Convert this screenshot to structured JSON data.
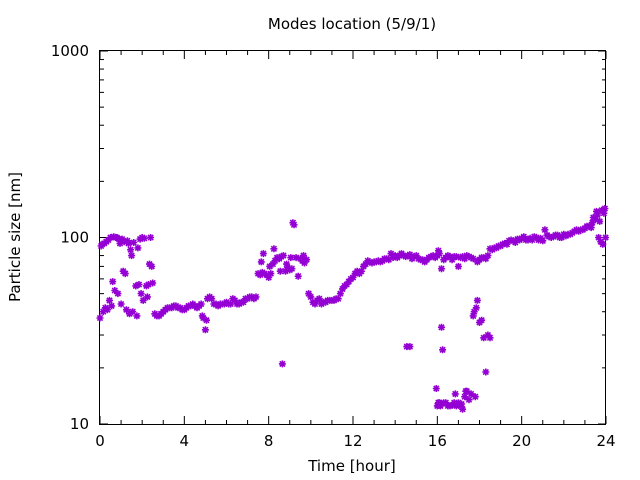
{
  "chart_data": {
    "type": "scatter",
    "title": "Modes location (5/9/1)",
    "xlabel": "Time [hour]",
    "ylabel": "Particle size [nm]",
    "xlim": [
      0,
      24
    ],
    "ylim": [
      10,
      1000
    ],
    "yscale": "log",
    "xticks": [
      0,
      4,
      8,
      12,
      16,
      20,
      24
    ],
    "yticks": [
      10,
      100,
      1000
    ],
    "grid": false,
    "marker_color": "#9400d3",
    "series": [
      {
        "points": [
          [
            0.0,
            37
          ],
          [
            0.05,
            90
          ],
          [
            0.1,
            92
          ],
          [
            0.15,
            40
          ],
          [
            0.2,
            93
          ],
          [
            0.25,
            42
          ],
          [
            0.3,
            95
          ],
          [
            0.35,
            41
          ],
          [
            0.4,
            97
          ],
          [
            0.45,
            46
          ],
          [
            0.5,
            100
          ],
          [
            0.55,
            43
          ],
          [
            0.6,
            58
          ],
          [
            0.65,
            101
          ],
          [
            0.7,
            52
          ],
          [
            0.75,
            100
          ],
          [
            0.8,
            100
          ],
          [
            0.85,
            50
          ],
          [
            0.9,
            98
          ],
          [
            0.95,
            93
          ],
          [
            1.0,
            44
          ],
          [
            1.05,
            98
          ],
          [
            1.1,
            66
          ],
          [
            1.15,
            95
          ],
          [
            1.2,
            64
          ],
          [
            1.25,
            41
          ],
          [
            1.3,
            96
          ],
          [
            1.35,
            93
          ],
          [
            1.4,
            39
          ],
          [
            1.45,
            86
          ],
          [
            1.5,
            80
          ],
          [
            1.55,
            40
          ],
          [
            1.6,
            94
          ],
          [
            1.7,
            55
          ],
          [
            1.75,
            38
          ],
          [
            1.8,
            88
          ],
          [
            1.85,
            56
          ],
          [
            1.9,
            98
          ],
          [
            1.95,
            50
          ],
          [
            2.0,
            100
          ],
          [
            2.05,
            46
          ],
          [
            2.1,
            99
          ],
          [
            2.2,
            55
          ],
          [
            2.25,
            48
          ],
          [
            2.3,
            56
          ],
          [
            2.35,
            72
          ],
          [
            2.4,
            100
          ],
          [
            2.45,
            70
          ],
          [
            2.5,
            57
          ],
          [
            2.6,
            39
          ],
          [
            2.7,
            38
          ],
          [
            2.8,
            38
          ],
          [
            2.9,
            39
          ],
          [
            3.0,
            40
          ],
          [
            3.1,
            41
          ],
          [
            3.2,
            42
          ],
          [
            3.3,
            42
          ],
          [
            3.4,
            42
          ],
          [
            3.5,
            43
          ],
          [
            3.6,
            43
          ],
          [
            3.7,
            42
          ],
          [
            3.8,
            42
          ],
          [
            3.9,
            41
          ],
          [
            4.0,
            41
          ],
          [
            4.1,
            42
          ],
          [
            4.2,
            43
          ],
          [
            4.3,
            43
          ],
          [
            4.4,
            44
          ],
          [
            4.5,
            43
          ],
          [
            4.6,
            42
          ],
          [
            4.7,
            43
          ],
          [
            4.8,
            44
          ],
          [
            4.85,
            38
          ],
          [
            4.9,
            37
          ],
          [
            5.0,
            32
          ],
          [
            5.05,
            36
          ],
          [
            5.1,
            47
          ],
          [
            5.2,
            48
          ],
          [
            5.3,
            47
          ],
          [
            5.4,
            44
          ],
          [
            5.5,
            44
          ],
          [
            5.6,
            43
          ],
          [
            5.7,
            44
          ],
          [
            5.8,
            44
          ],
          [
            5.9,
            44
          ],
          [
            6.0,
            45
          ],
          [
            6.1,
            44
          ],
          [
            6.2,
            44
          ],
          [
            6.3,
            47
          ],
          [
            6.4,
            46
          ],
          [
            6.5,
            44
          ],
          [
            6.6,
            44
          ],
          [
            6.7,
            45
          ],
          [
            6.8,
            45
          ],
          [
            6.9,
            47
          ],
          [
            7.0,
            47
          ],
          [
            7.1,
            48
          ],
          [
            7.2,
            48
          ],
          [
            7.3,
            47
          ],
          [
            7.4,
            48
          ],
          [
            7.5,
            64
          ],
          [
            7.6,
            63
          ],
          [
            7.65,
            74
          ],
          [
            7.7,
            65
          ],
          [
            7.75,
            82
          ],
          [
            7.8,
            64
          ],
          [
            7.9,
            63
          ],
          [
            8.0,
            61
          ],
          [
            8.05,
            70
          ],
          [
            8.1,
            64
          ],
          [
            8.2,
            72
          ],
          [
            8.25,
            87
          ],
          [
            8.3,
            75
          ],
          [
            8.4,
            78
          ],
          [
            8.5,
            77
          ],
          [
            8.55,
            66
          ],
          [
            8.6,
            79
          ],
          [
            8.65,
            21
          ],
          [
            8.7,
            80
          ],
          [
            8.8,
            66
          ],
          [
            8.85,
            72
          ],
          [
            8.9,
            69
          ],
          [
            9.0,
            67
          ],
          [
            9.05,
            78
          ],
          [
            9.1,
            68
          ],
          [
            9.15,
            120
          ],
          [
            9.2,
            117
          ],
          [
            9.3,
            78
          ],
          [
            9.4,
            62
          ],
          [
            9.5,
            77
          ],
          [
            9.6,
            75
          ],
          [
            9.65,
            80
          ],
          [
            9.7,
            73
          ],
          [
            9.8,
            76
          ],
          [
            9.9,
            50
          ],
          [
            10.0,
            48
          ],
          [
            10.1,
            45
          ],
          [
            10.2,
            44
          ],
          [
            10.3,
            46
          ],
          [
            10.4,
            47
          ],
          [
            10.5,
            44
          ],
          [
            10.6,
            45
          ],
          [
            10.7,
            45
          ],
          [
            10.8,
            46
          ],
          [
            10.9,
            46
          ],
          [
            11.0,
            46
          ],
          [
            11.1,
            46
          ],
          [
            11.2,
            47
          ],
          [
            11.3,
            47
          ],
          [
            11.4,
            50
          ],
          [
            11.5,
            53
          ],
          [
            11.6,
            55
          ],
          [
            11.7,
            56
          ],
          [
            11.8,
            58
          ],
          [
            11.9,
            60
          ],
          [
            12.0,
            61
          ],
          [
            12.1,
            64
          ],
          [
            12.2,
            66
          ],
          [
            12.3,
            64
          ],
          [
            12.4,
            66
          ],
          [
            12.5,
            70
          ],
          [
            12.6,
            72
          ],
          [
            12.7,
            75
          ],
          [
            12.8,
            74
          ],
          [
            12.9,
            73
          ],
          [
            13.0,
            74
          ],
          [
            13.1,
            74
          ],
          [
            13.2,
            75
          ],
          [
            13.3,
            74
          ],
          [
            13.4,
            75
          ],
          [
            13.5,
            77
          ],
          [
            13.6,
            77
          ],
          [
            13.7,
            76
          ],
          [
            13.8,
            82
          ],
          [
            13.9,
            78
          ],
          [
            14.0,
            80
          ],
          [
            14.1,
            78
          ],
          [
            14.2,
            80
          ],
          [
            14.3,
            82
          ],
          [
            14.4,
            80
          ],
          [
            14.5,
            79
          ],
          [
            14.6,
            80
          ],
          [
            14.7,
            81
          ],
          [
            14.8,
            77
          ],
          [
            14.9,
            79
          ],
          [
            15.0,
            80
          ],
          [
            15.1,
            77
          ],
          [
            15.2,
            76
          ],
          [
            15.3,
            76
          ],
          [
            15.4,
            74
          ],
          [
            15.5,
            76
          ],
          [
            15.6,
            78
          ],
          [
            15.7,
            79
          ],
          [
            15.8,
            80
          ],
          [
            15.9,
            78
          ],
          [
            16.0,
            80
          ],
          [
            16.05,
            85
          ],
          [
            16.1,
            82
          ],
          [
            16.2,
            68
          ],
          [
            16.3,
            76
          ],
          [
            16.4,
            78
          ],
          [
            16.5,
            80
          ],
          [
            16.6,
            79
          ],
          [
            16.7,
            76
          ],
          [
            16.8,
            79
          ],
          [
            16.9,
            79
          ],
          [
            17.0,
            70
          ],
          [
            17.1,
            78
          ],
          [
            17.2,
            79
          ],
          [
            17.3,
            77
          ],
          [
            17.4,
            80
          ],
          [
            17.5,
            79
          ],
          [
            17.6,
            78
          ],
          [
            17.7,
            77
          ],
          [
            14.55,
            26
          ],
          [
            14.7,
            26
          ],
          [
            15.95,
            15.5
          ],
          [
            16.0,
            12.5
          ],
          [
            16.05,
            13
          ],
          [
            16.1,
            13
          ],
          [
            16.15,
            12.5
          ],
          [
            16.2,
            33
          ],
          [
            16.25,
            25
          ],
          [
            16.3,
            13
          ],
          [
            16.4,
            13
          ],
          [
            16.5,
            12.5
          ],
          [
            16.6,
            12.5
          ],
          [
            16.7,
            12.6
          ],
          [
            16.8,
            13
          ],
          [
            16.85,
            14.5
          ],
          [
            16.9,
            12.5
          ],
          [
            17.0,
            13
          ],
          [
            17.1,
            12.5
          ],
          [
            17.15,
            12.8
          ],
          [
            17.2,
            12
          ],
          [
            17.3,
            14
          ],
          [
            17.35,
            15
          ],
          [
            17.4,
            15
          ],
          [
            17.5,
            13.5
          ],
          [
            17.6,
            14.5
          ],
          [
            17.7,
            38
          ],
          [
            17.75,
            40
          ],
          [
            17.8,
            14
          ],
          [
            17.85,
            42
          ],
          [
            17.9,
            46
          ],
          [
            18.0,
            35
          ],
          [
            18.1,
            36
          ],
          [
            18.2,
            29
          ],
          [
            18.3,
            19
          ],
          [
            18.4,
            30
          ],
          [
            18.5,
            29
          ],
          [
            17.9,
            74
          ],
          [
            18.0,
            76
          ],
          [
            18.1,
            78
          ],
          [
            18.2,
            78
          ],
          [
            18.3,
            77
          ],
          [
            18.4,
            80
          ],
          [
            18.5,
            87
          ],
          [
            18.6,
            86
          ],
          [
            18.7,
            88
          ],
          [
            18.8,
            88
          ],
          [
            18.9,
            90
          ],
          [
            19.0,
            90
          ],
          [
            19.1,
            92
          ],
          [
            19.2,
            93
          ],
          [
            19.3,
            92
          ],
          [
            19.4,
            96
          ],
          [
            19.5,
            97
          ],
          [
            19.6,
            96
          ],
          [
            19.7,
            94
          ],
          [
            19.8,
            98
          ],
          [
            19.9,
            97
          ],
          [
            20.0,
            99
          ],
          [
            20.1,
            101
          ],
          [
            20.2,
            97
          ],
          [
            20.3,
            97
          ],
          [
            20.4,
            99
          ],
          [
            20.5,
            97
          ],
          [
            20.6,
            101
          ],
          [
            20.7,
            100
          ],
          [
            20.8,
            97
          ],
          [
            20.9,
            99
          ],
          [
            21.0,
            96
          ],
          [
            21.1,
            110
          ],
          [
            21.2,
            103
          ],
          [
            21.3,
            101
          ],
          [
            21.4,
            100
          ],
          [
            21.5,
            101
          ],
          [
            21.6,
            103
          ],
          [
            21.7,
            103
          ],
          [
            21.8,
            100
          ],
          [
            21.9,
            100
          ],
          [
            22.0,
            104
          ],
          [
            22.1,
            102
          ],
          [
            22.2,
            104
          ],
          [
            22.3,
            104
          ],
          [
            22.4,
            106
          ],
          [
            22.5,
            108
          ],
          [
            22.6,
            110
          ],
          [
            22.7,
            108
          ],
          [
            22.8,
            110
          ],
          [
            22.9,
            110
          ],
          [
            23.0,
            112
          ],
          [
            23.1,
            115
          ],
          [
            23.2,
            115
          ],
          [
            23.3,
            113
          ],
          [
            23.35,
            120
          ],
          [
            23.4,
            128
          ],
          [
            23.5,
            125
          ],
          [
            23.55,
            138
          ],
          [
            23.6,
            132
          ],
          [
            23.65,
            100
          ],
          [
            23.7,
            122
          ],
          [
            23.75,
            95
          ],
          [
            23.8,
            140
          ],
          [
            23.85,
            92
          ],
          [
            23.9,
            135
          ],
          [
            23.95,
            143
          ],
          [
            23.98,
            100
          ]
        ]
      }
    ]
  }
}
